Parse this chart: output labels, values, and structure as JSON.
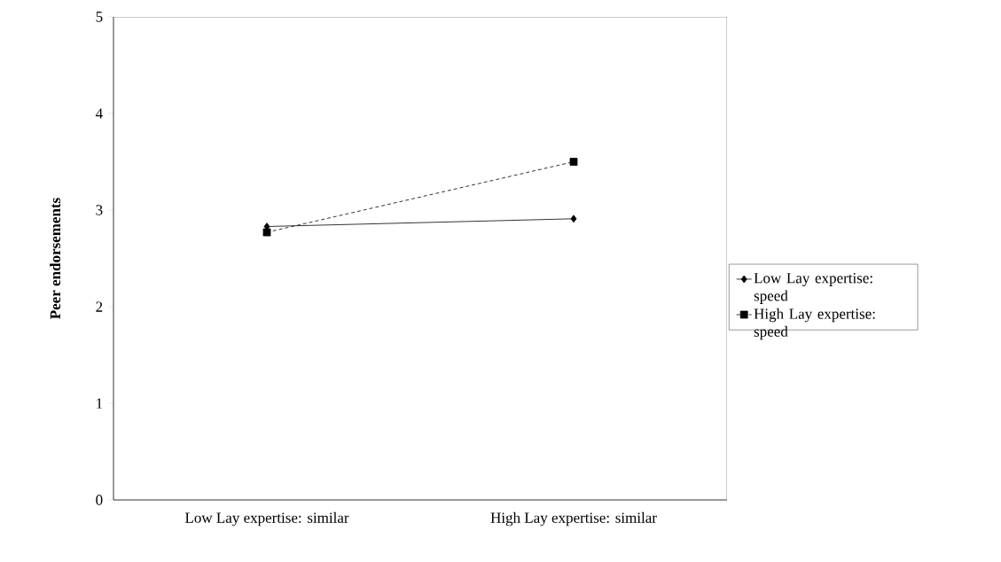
{
  "chart_data": {
    "type": "line",
    "ylabel": "Peer endorsements",
    "categories": [
      "Low Lay expertise: similar",
      "High Lay expertise: similar"
    ],
    "series": [
      {
        "name": "Low Lay expertise: speed",
        "color": "#000000",
        "values": [
          2.83,
          2.91
        ],
        "marker": "diamond",
        "line_style": "solid"
      },
      {
        "name": "High Lay expertise: speed",
        "color": "#000000",
        "values": [
          2.77,
          3.5
        ],
        "marker": "square",
        "line_style": "dashed"
      }
    ],
    "ylim": [
      0,
      5
    ],
    "yticks": [
      0,
      1,
      2,
      3,
      4,
      5
    ],
    "grid": false,
    "legend": "right"
  }
}
